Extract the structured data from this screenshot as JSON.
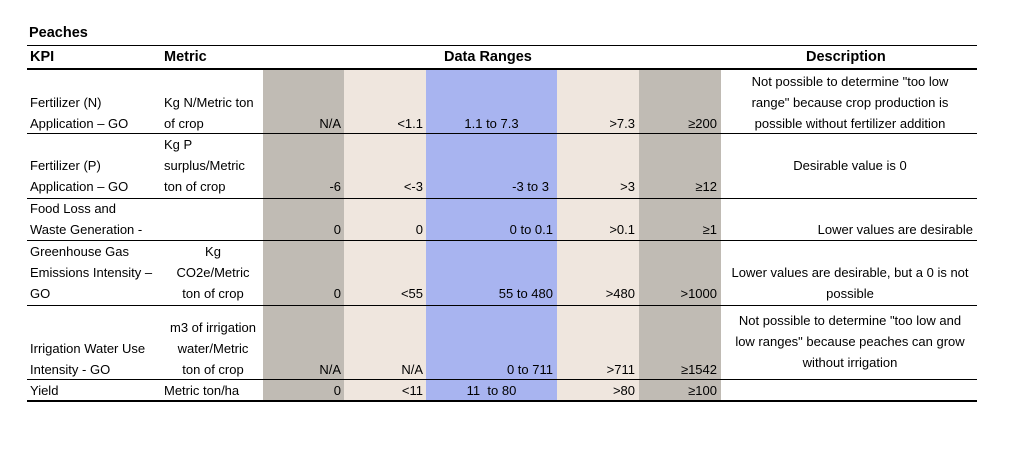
{
  "title": "Peaches",
  "headers": {
    "kpi": "KPI",
    "metric": "Metric",
    "ranges": "Data Ranges",
    "description": "Description"
  },
  "colors": {
    "gray": "#c0bbb4",
    "beige": "#efe6de",
    "blue": "#a8b4f0"
  },
  "rows": [
    {
      "kpi": [
        "Fertilizer (N)",
        "Application – GO"
      ],
      "metric": [
        "Kg N/Metric ton",
        "of crop"
      ],
      "r1": "N/A",
      "r2": "<1.1",
      "r3": "1.1 to 7.3",
      "r4": ">7.3",
      "r5": "≥200",
      "description": [
        "Not possible to determine \"too low",
        "range\" because crop production is",
        "possible without fertilizer addition"
      ]
    },
    {
      "kpi": [
        "Fertilizer (P)",
        "Application – GO"
      ],
      "metric": [
        "Kg P",
        "surplus/Metric",
        "ton of crop"
      ],
      "r1": "-6",
      "r2": "<-3",
      "r3": "-3 to 3",
      "r4": ">3",
      "r5": "≥12",
      "description": [
        "Desirable value is 0"
      ]
    },
    {
      "kpi": [
        "Food Loss and",
        "Waste Generation -"
      ],
      "metric": [],
      "r1": "0",
      "r2": "0",
      "r3": "0 to 0.1",
      "r4": ">0.1",
      "r5": "≥1",
      "description": [
        "Lower values are desirable"
      ]
    },
    {
      "kpi": [
        "Greenhouse Gas",
        "Emissions Intensity –",
        "GO"
      ],
      "metric": [
        "Kg",
        "CO2e/Metric",
        "ton of crop"
      ],
      "r1": "0",
      "r2": "<55",
      "r3": "55 to 480",
      "r4": ">480",
      "r5": ">1000",
      "description": [
        "Lower values are desirable, but a 0 is not",
        "possible"
      ]
    },
    {
      "kpi": [
        "Irrigation Water Use",
        "Intensity - GO"
      ],
      "metric": [
        "m3 of irrigation",
        "water/Metric",
        "ton of crop"
      ],
      "r1": "N/A",
      "r2": "N/A",
      "r3": "0 to 711",
      "r4": ">711",
      "r5": "≥1542",
      "description": [
        "Not possible to determine \"too low and",
        "low ranges\" because peaches can grow",
        "without irrigation"
      ]
    },
    {
      "kpi": [
        "Yield"
      ],
      "metric": [
        "Metric ton/ha"
      ],
      "r1": "0",
      "r2": "<11",
      "r3": "11  to 80",
      "r4": ">80",
      "r5": "≥100",
      "description": []
    }
  ]
}
